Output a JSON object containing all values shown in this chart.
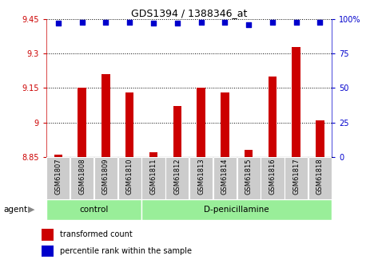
{
  "title": "GDS1394 / 1388346_at",
  "samples": [
    "GSM61807",
    "GSM61808",
    "GSM61809",
    "GSM61810",
    "GSM61811",
    "GSM61812",
    "GSM61813",
    "GSM61814",
    "GSM61815",
    "GSM61816",
    "GSM61817",
    "GSM61818"
  ],
  "bar_values": [
    8.86,
    9.15,
    9.21,
    9.13,
    8.87,
    9.07,
    9.15,
    9.13,
    8.88,
    9.2,
    9.33,
    9.01
  ],
  "percentile_values": [
    97,
    98,
    98,
    98,
    97,
    97,
    98,
    98,
    96,
    98,
    98,
    98
  ],
  "bar_color": "#cc0000",
  "dot_color": "#0000cc",
  "ylim_left": [
    8.85,
    9.45
  ],
  "ylim_right": [
    0,
    100
  ],
  "yticks_left": [
    8.85,
    9.0,
    9.15,
    9.3,
    9.45
  ],
  "yticks_right": [
    0,
    25,
    50,
    75,
    100
  ],
  "ytick_labels_left": [
    "8.85",
    "9",
    "9.15",
    "9.3",
    "9.45"
  ],
  "ytick_labels_right": [
    "0",
    "25",
    "50",
    "75",
    "100%"
  ],
  "control_label": "control",
  "treatment_label": "D-penicillamine",
  "agent_label": "agent",
  "group_bg_color": "#99ee99",
  "tick_label_bg": "#cccccc",
  "legend_bar_label": "transformed count",
  "legend_dot_label": "percentile rank within the sample",
  "bar_color_legend": "#cc0000",
  "dot_color_legend": "#0000cc",
  "axis_left_color": "#cc0000",
  "axis_right_color": "#0000cc",
  "n_control": 4,
  "n_treatment": 8
}
